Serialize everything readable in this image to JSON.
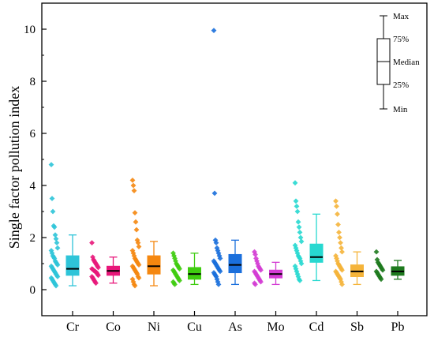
{
  "chart_data": {
    "type": "box",
    "ylabel": "Single factor pollution index",
    "xlabel": "",
    "ylim": [
      -1,
      11
    ],
    "yticks": [
      0,
      2,
      4,
      6,
      8,
      10
    ],
    "grid": false,
    "legend_position": "top-right",
    "legend": {
      "labels": [
        "Max",
        "75%",
        "Median",
        "25%",
        "Min"
      ]
    },
    "categories": [
      "Cr",
      "Co",
      "Ni",
      "Cu",
      "As",
      "Mo",
      "Cd",
      "Sb",
      "Pb"
    ],
    "colors": [
      "#2ec4d8",
      "#e8177a",
      "#f5870f",
      "#3fcc10",
      "#1a6fdc",
      "#d43cd4",
      "#27d8d0",
      "#f5b43a",
      "#1e7a1e"
    ],
    "boxes": [
      {
        "min": 0.15,
        "q1": 0.55,
        "median": 0.8,
        "q3": 1.3,
        "max": 2.1
      },
      {
        "min": 0.25,
        "q1": 0.55,
        "median": 0.72,
        "q3": 0.9,
        "max": 1.25
      },
      {
        "min": 0.15,
        "q1": 0.6,
        "median": 0.9,
        "q3": 1.3,
        "max": 1.85
      },
      {
        "min": 0.2,
        "q1": 0.4,
        "median": 0.6,
        "q3": 0.85,
        "max": 1.4
      },
      {
        "min": 0.2,
        "q1": 0.65,
        "median": 0.95,
        "q3": 1.35,
        "max": 1.9
      },
      {
        "min": 0.2,
        "q1": 0.45,
        "median": 0.6,
        "q3": 0.75,
        "max": 1.05
      },
      {
        "min": 0.35,
        "q1": 1.05,
        "median": 1.25,
        "q3": 1.75,
        "max": 2.9
      },
      {
        "min": 0.2,
        "q1": 0.5,
        "median": 0.7,
        "q3": 0.95,
        "max": 1.45
      },
      {
        "min": 0.4,
        "q1": 0.55,
        "median": 0.7,
        "q3": 0.88,
        "max": 1.12
      }
    ],
    "points": [
      [
        4.8,
        3.5,
        3.0,
        2.45,
        2.4,
        2.1,
        1.95,
        1.8,
        1.6,
        1.5,
        1.4,
        1.3,
        1.25,
        1.2,
        1.1,
        1.05,
        1.0,
        0.95,
        0.9,
        0.85,
        0.8,
        0.75,
        0.7,
        0.65,
        0.6,
        0.55,
        0.5,
        0.45,
        0.4,
        0.35,
        0.3,
        0.25,
        0.2,
        0.15
      ],
      [
        1.8,
        1.25,
        1.15,
        1.1,
        1.05,
        1.0,
        0.95,
        0.9,
        0.85,
        0.8,
        0.78,
        0.75,
        0.72,
        0.7,
        0.68,
        0.65,
        0.6,
        0.55,
        0.5,
        0.45,
        0.4,
        0.35,
        0.3,
        0.25
      ],
      [
        4.2,
        4.0,
        3.8,
        2.95,
        2.6,
        2.3,
        1.9,
        1.8,
        1.65,
        1.5,
        1.4,
        1.3,
        1.2,
        1.15,
        1.1,
        1.05,
        1.0,
        0.95,
        0.9,
        0.85,
        0.8,
        0.75,
        0.7,
        0.65,
        0.6,
        0.5,
        0.45,
        0.4,
        0.3,
        0.2,
        0.15
      ],
      [
        1.4,
        1.3,
        1.2,
        1.1,
        1.0,
        0.95,
        0.9,
        0.85,
        0.8,
        0.75,
        0.7,
        0.65,
        0.6,
        0.55,
        0.5,
        0.45,
        0.4,
        0.35,
        0.3,
        0.25,
        0.2
      ],
      [
        9.95,
        3.7,
        1.9,
        1.8,
        1.6,
        1.5,
        1.4,
        1.3,
        1.2,
        1.1,
        1.05,
        1.0,
        0.95,
        0.9,
        0.85,
        0.8,
        0.75,
        0.7,
        0.65,
        0.6,
        0.55,
        0.5,
        0.4,
        0.3,
        0.2
      ],
      [
        1.45,
        1.35,
        1.2,
        1.1,
        1.0,
        0.9,
        0.85,
        0.8,
        0.75,
        0.7,
        0.65,
        0.6,
        0.55,
        0.5,
        0.45,
        0.4,
        0.35,
        0.3,
        0.25,
        0.2
      ],
      [
        4.1,
        3.4,
        3.2,
        3.0,
        2.6,
        2.4,
        2.2,
        2.0,
        1.85,
        1.7,
        1.6,
        1.5,
        1.4,
        1.3,
        1.25,
        1.2,
        1.1,
        1.0,
        0.9,
        0.8,
        0.7,
        0.6,
        0.5,
        0.4,
        0.35
      ],
      [
        3.4,
        3.2,
        2.9,
        2.5,
        2.2,
        2.0,
        1.8,
        1.6,
        1.45,
        1.3,
        1.2,
        1.1,
        1.0,
        0.95,
        0.9,
        0.85,
        0.8,
        0.75,
        0.7,
        0.65,
        0.6,
        0.55,
        0.5,
        0.45,
        0.4,
        0.3,
        0.2
      ],
      [
        1.45,
        1.15,
        1.05,
        1.0,
        0.95,
        0.9,
        0.85,
        0.8,
        0.75,
        0.7,
        0.65,
        0.6,
        0.55,
        0.5,
        0.45,
        0.4
      ]
    ]
  }
}
